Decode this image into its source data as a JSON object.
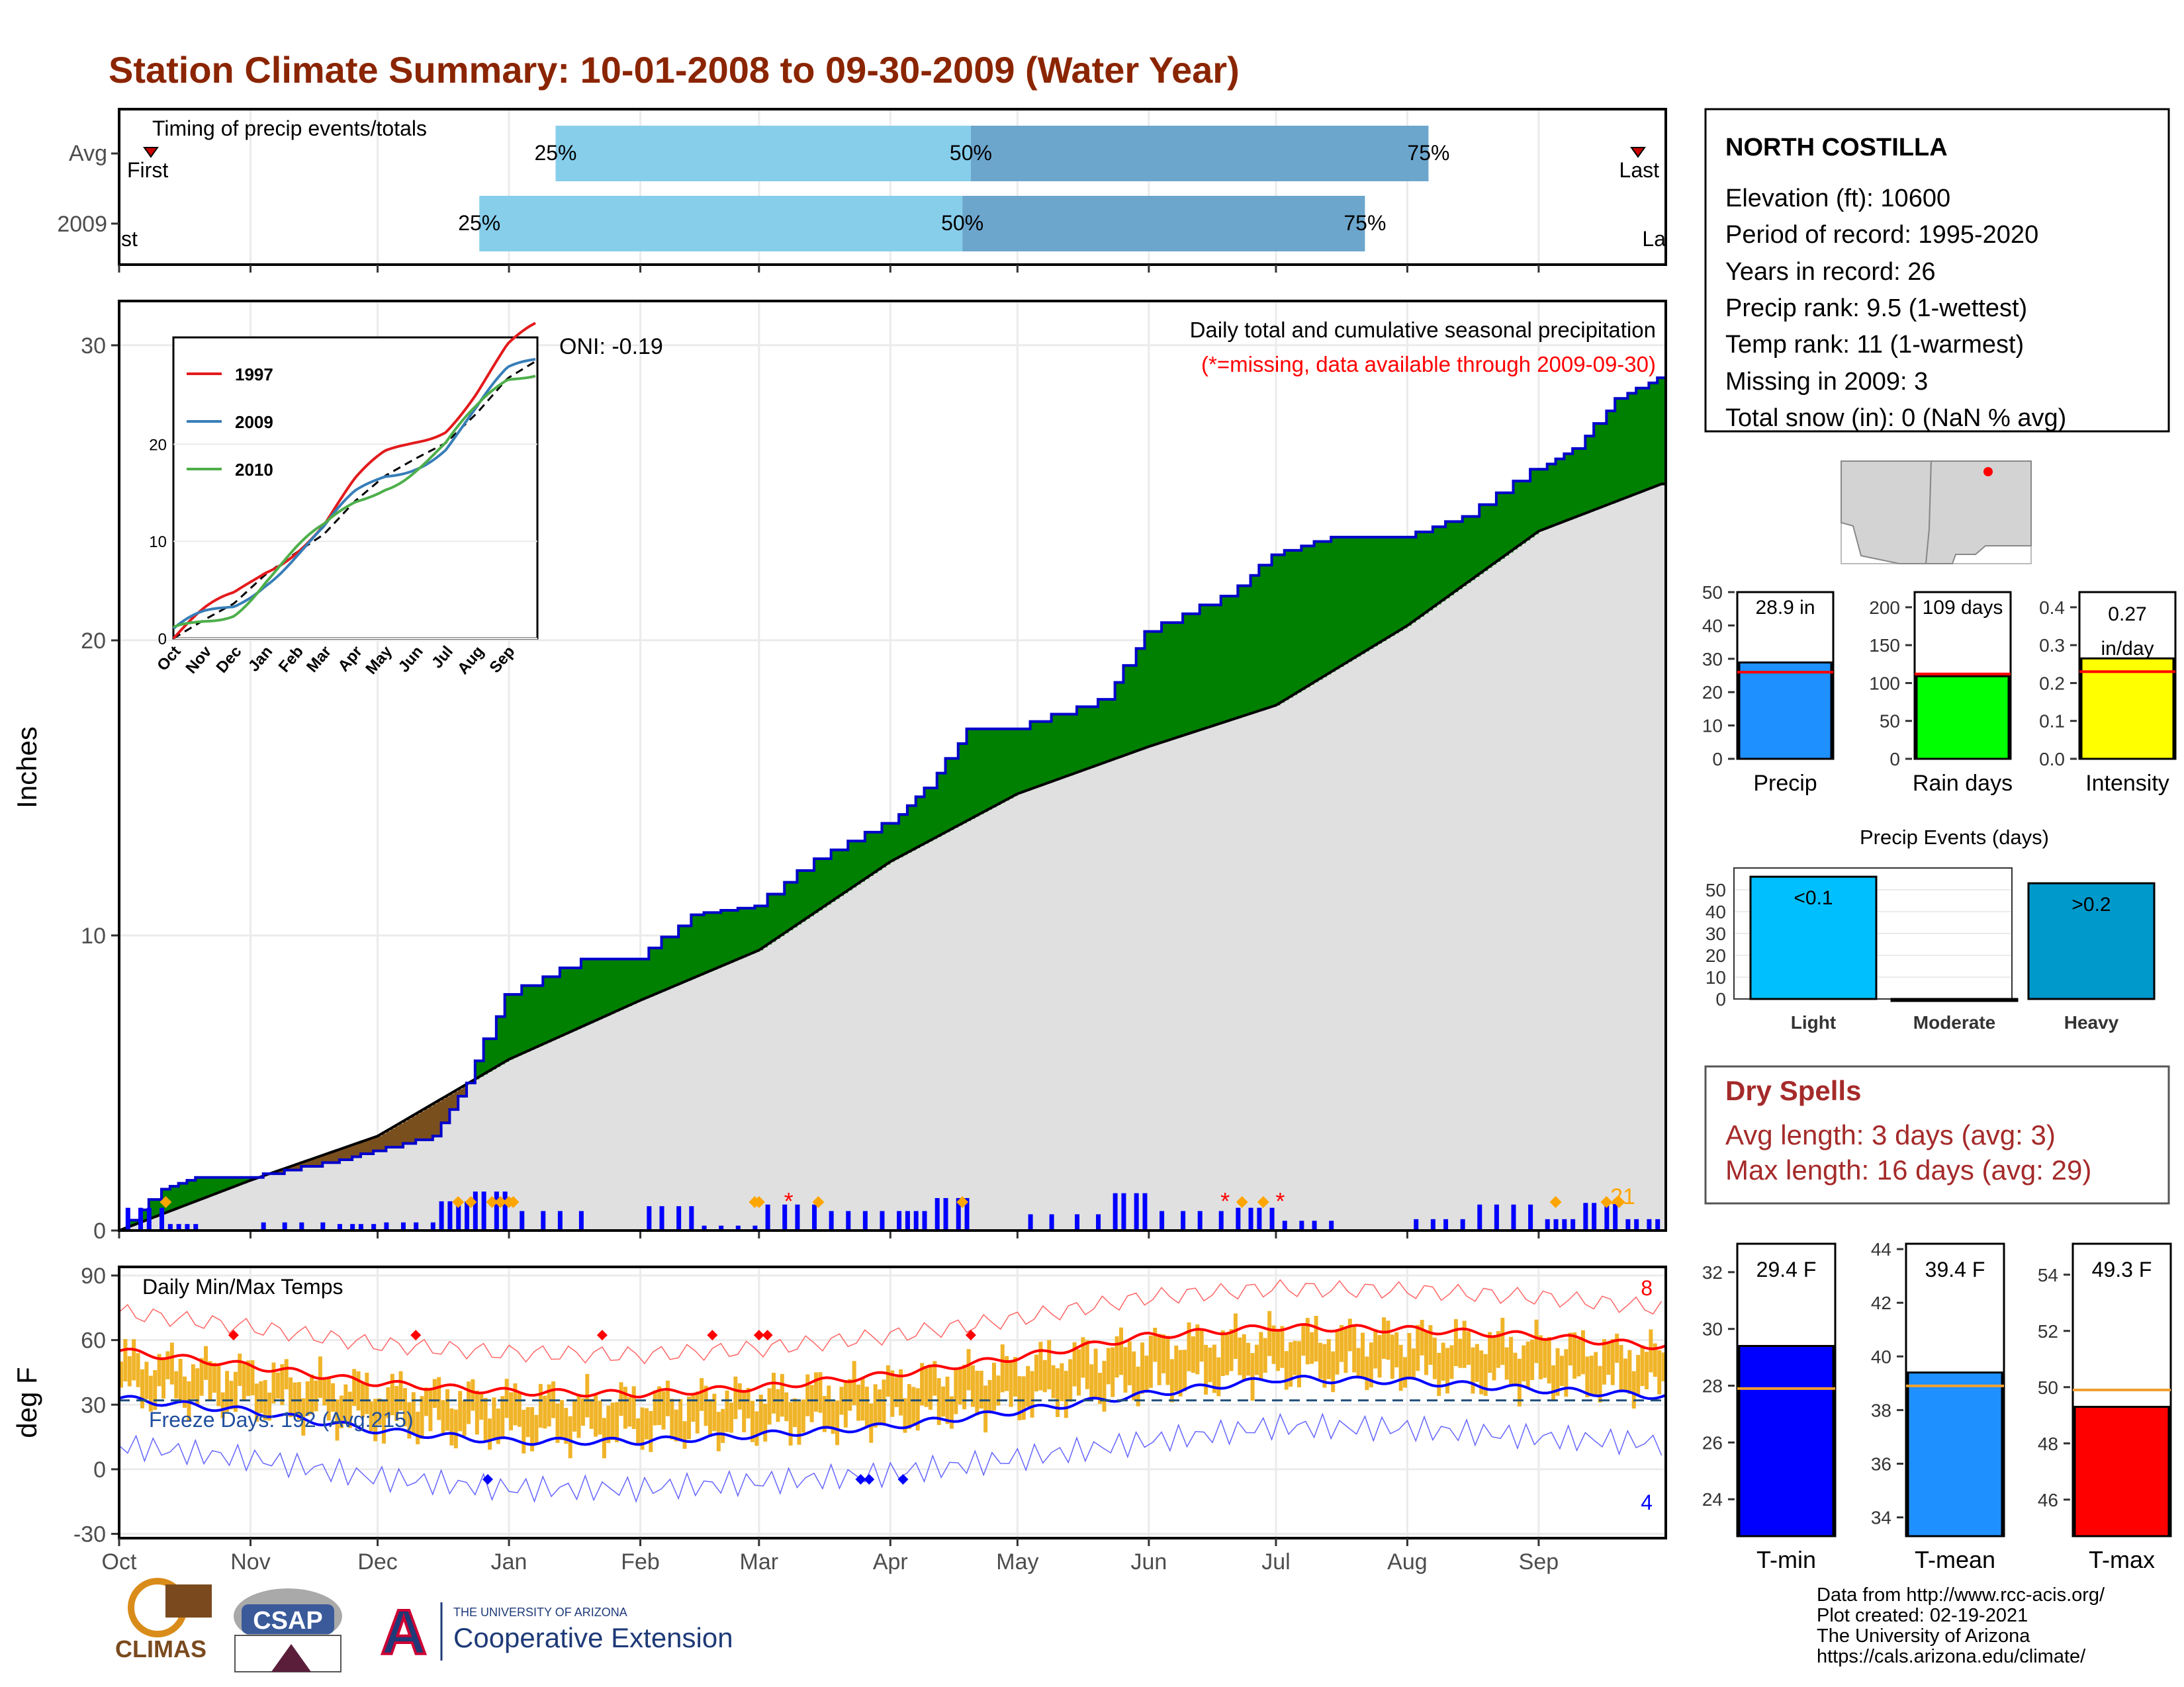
{
  "title": "Station Climate Summary: 10-01-2008 to 09-30-2009 (Water Year)",
  "timing": {
    "label": "Timing of precip events/totals",
    "rows": [
      "Avg",
      "2009"
    ],
    "pct_labels": [
      "25%",
      "50%",
      "75%"
    ],
    "avg": {
      "p25": "Jan 12",
      "p50": "Apr 20",
      "p75": "Aug 6",
      "first_label": "First",
      "last_label": "Last"
    },
    "y2009": {
      "p25": "Dec 25",
      "p50": "Apr 18",
      "p75": "Jul 22",
      "first_label": "First",
      "last_label": "Last"
    }
  },
  "month_labels": [
    "Oct",
    "Nov",
    "Dec",
    "Jan",
    "Feb",
    "Mar",
    "Apr",
    "May",
    "Jun",
    "Jul",
    "Aug",
    "Sep"
  ],
  "precip_panel": {
    "ylabel": "Inches",
    "caption": "Daily total and cumulative seasonal precipitation",
    "missing_note": "(*=missing, data available through 2009-09-30)",
    "oni": "ONI: -0.19",
    "count_label": "21",
    "colors": {
      "observed_line": "#0000cc",
      "above": "#008000",
      "below": "#7a4f1e",
      "normal_fill": "#e0e0e0",
      "daily_bar": "#0000ff",
      "extreme": "#ffa500",
      "missing": "#ff0000"
    }
  },
  "inset": {
    "legend": [
      "1997",
      "2009",
      "2010"
    ],
    "colors": [
      "#e31a1c",
      "#377eb8",
      "#4daf4a"
    ],
    "yticks": [
      "0",
      "10",
      "20"
    ],
    "xticks": [
      "Oct",
      "Nov",
      "Dec",
      "Jan",
      "Feb",
      "Mar",
      "Apr",
      "May",
      "Jun",
      "Jul",
      "Aug",
      "Sep"
    ]
  },
  "temp_panel": {
    "ylabel": "deg F",
    "label": "Daily Min/Max Temps",
    "freeze": "Freeze Days: 192 (Avg:215)",
    "hi_count": "8",
    "lo_count": "4",
    "yticks": [
      "90",
      "60",
      "30",
      "0",
      "-30"
    ]
  },
  "station": {
    "name": "NORTH COSTILLA",
    "lines": [
      "Elevation (ft): 10600",
      "Period of record: 1995-2020",
      "Years in record: 26",
      "Precip rank: 9.5 (1-wettest)",
      "Temp rank: 11 (1-warmest)",
      "Missing in 2009: 3",
      "Total snow (in): 0 (NaN % avg)"
    ]
  },
  "mini_bars": [
    {
      "name": "Precip",
      "label": "28.9 in",
      "value": 28.9,
      "avg": 26,
      "max": 50,
      "yticks": [
        "50",
        "40",
        "30",
        "20",
        "10",
        "0"
      ],
      "color": "#1e90ff"
    },
    {
      "name": "Rain days",
      "label": "109 days",
      "value": 109,
      "avg": 112,
      "max": 220,
      "yticks": [
        "200",
        "150",
        "100",
        "50",
        "0"
      ],
      "color": "#00ff00"
    },
    {
      "name": "Intensity",
      "label": "0.27 in/day",
      "value": 0.265,
      "avg": 0.23,
      "max": 0.44,
      "yticks": [
        "0.4",
        "0.3",
        "0.2",
        "0.1",
        "0.0"
      ],
      "color": "#ffff00"
    }
  ],
  "events": {
    "title": "Precip Events (days)",
    "categories": [
      "Light",
      "Moderate",
      "Heavy"
    ],
    "labels": [
      "<0.1",
      "",
      ">0.2"
    ],
    "values": [
      56,
      0,
      53
    ],
    "yticks": [
      "50",
      "40",
      "30",
      "20",
      "10",
      "0"
    ],
    "colors": [
      "#00bfff",
      "#1e90ff",
      "#0099cc"
    ]
  },
  "dry_spells": {
    "title": "Dry Spells",
    "lines": [
      "Avg length: 3 days (avg: 3)",
      "Max length: 16 days (avg: 29)"
    ]
  },
  "temp_bars": [
    {
      "name": "T-min",
      "label": "29.4 F",
      "value": 29.4,
      "avg": 27.9,
      "min": 22.7,
      "max": 33.0,
      "yticks": [
        "32",
        "30",
        "28",
        "26",
        "24"
      ],
      "color": "#0000ff"
    },
    {
      "name": "T-mean",
      "label": "39.4 F",
      "value": 39.4,
      "avg": 38.9,
      "min": 33.3,
      "max": 44.2,
      "yticks": [
        "44",
        "42",
        "40",
        "38",
        "36",
        "34"
      ],
      "color": "#1e90ff"
    },
    {
      "name": "T-max",
      "label": "49.3 F",
      "value": 49.3,
      "avg": 49.9,
      "min": 44.7,
      "max": 55.1,
      "yticks": [
        "54",
        "52",
        "50",
        "48",
        "46"
      ],
      "color": "#ff0000"
    }
  ],
  "footer": {
    "logos": [
      "CLIMAS",
      "CSAP",
      "A"
    ],
    "ua_small": "THE UNIVERSITY OF ARIZONA",
    "ua_big": "Cooperative Extension",
    "credits": [
      "Data from http://www.rcc-acis.org/",
      "Plot created: 02-19-2021",
      "The University of Arizona",
      "https://cals.arizona.edu/climate/"
    ]
  },
  "chart_data": {
    "type": "area",
    "title": "Daily total and cumulative seasonal precipitation",
    "ylabel": "Inches",
    "ylim": [
      0,
      31.5
    ],
    "x_months": [
      "Oct",
      "Nov",
      "Dec",
      "Jan",
      "Feb",
      "Mar",
      "Apr",
      "May",
      "Jun",
      "Jul",
      "Aug",
      "Sep"
    ],
    "series": [
      {
        "name": "2009",
        "points": [
          [
            "Oct 1",
            0
          ],
          [
            "Oct 12",
            1.4
          ],
          [
            "Oct 20",
            1.8
          ],
          [
            "Nov 1",
            1.8
          ],
          [
            "Nov 20",
            2.3
          ],
          [
            "Dec 1",
            2.7
          ],
          [
            "Dec 15",
            3.2
          ],
          [
            "Dec 22",
            5.0
          ],
          [
            "Jan 1",
            8.0
          ],
          [
            "Jan 20",
            9.2
          ],
          [
            "Feb 1",
            9.2
          ],
          [
            "Feb 14",
            10.7
          ],
          [
            "Mar 1",
            11.0
          ],
          [
            "Mar 15",
            12.6
          ],
          [
            "Apr 1",
            13.8
          ],
          [
            "Apr 10",
            15.0
          ],
          [
            "Apr 20",
            17.0
          ],
          [
            "May 1",
            17.0
          ],
          [
            "May 22",
            18.0
          ],
          [
            "Jun 1",
            20.3
          ],
          [
            "Jun 20",
            21.5
          ],
          [
            "Jul 1",
            22.9
          ],
          [
            "Jul 15",
            23.5
          ],
          [
            "Aug 1",
            23.5
          ],
          [
            "Aug 15",
            24.2
          ],
          [
            "Sep 1",
            25.8
          ],
          [
            "Sep 10",
            26.5
          ],
          [
            "Sep 20",
            28.2
          ],
          [
            "Sep 30",
            28.9
          ]
        ]
      },
      {
        "name": "Average",
        "points": [
          [
            "Oct 1",
            0
          ],
          [
            "Nov 1",
            1.7
          ],
          [
            "Dec 1",
            3.2
          ],
          [
            "Jan 1",
            5.8
          ],
          [
            "Feb 1",
            7.8
          ],
          [
            "Mar 1",
            9.5
          ],
          [
            "Apr 1",
            12.5
          ],
          [
            "May 1",
            14.8
          ],
          [
            "Jun 1",
            16.4
          ],
          [
            "Jul 1",
            17.8
          ],
          [
            "Aug 1",
            20.5
          ],
          [
            "Sep 1",
            23.7
          ],
          [
            "Sep 30",
            25.3
          ]
        ]
      }
    ],
    "temperature": {
      "ylim": [
        -32,
        94
      ],
      "freeze_line": 32,
      "avg_max": [
        [
          "Oct 1",
          55
        ],
        [
          "Nov 1",
          48
        ],
        [
          "Dec 1",
          40
        ],
        [
          "Jan 1",
          36
        ],
        [
          "Feb 1",
          35
        ],
        [
          "Mar 1",
          38
        ],
        [
          "Apr 1",
          44
        ],
        [
          "May 1",
          52
        ],
        [
          "Jun 1",
          62
        ],
        [
          "Jul 1",
          66
        ],
        [
          "Aug 1",
          65
        ],
        [
          "Sep 1",
          62
        ],
        [
          "Sep 30",
          57
        ]
      ],
      "avg_min": [
        [
          "Oct 1",
          33
        ],
        [
          "Nov 1",
          27
        ],
        [
          "Dec 1",
          18
        ],
        [
          "Jan 1",
          13
        ],
        [
          "Feb 1",
          13
        ],
        [
          "Mar 1",
          16
        ],
        [
          "Apr 1",
          20
        ],
        [
          "May 1",
          27
        ],
        [
          "Jun 1",
          35
        ],
        [
          "Jul 1",
          42
        ],
        [
          "Aug 1",
          41
        ],
        [
          "Sep 1",
          37
        ],
        [
          "Sep 30",
          34
        ]
      ]
    }
  }
}
